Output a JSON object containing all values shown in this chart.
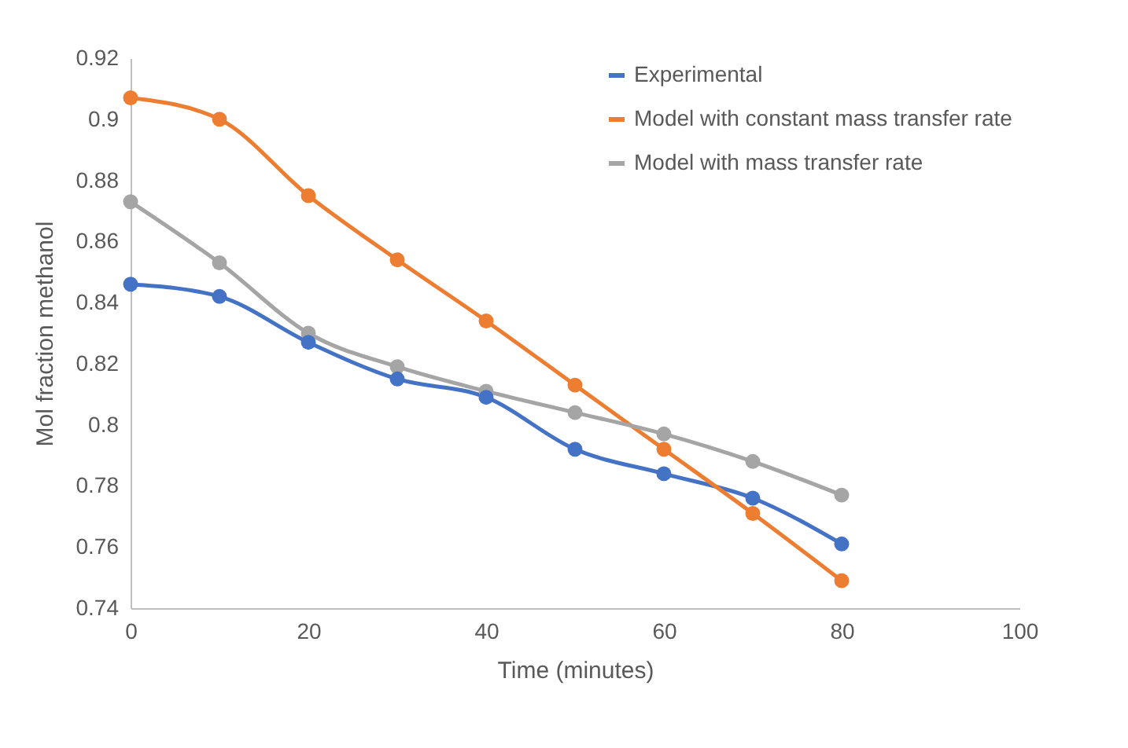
{
  "chart_data": {
    "type": "line",
    "xlabel": "Time (minutes)",
    "ylabel": "Mol fraction methanol",
    "x": [
      0,
      10,
      20,
      30,
      40,
      50,
      60,
      70,
      80
    ],
    "series": [
      {
        "name": "Experimental",
        "color": "#4472c4",
        "values": [
          0.846,
          0.842,
          0.827,
          0.815,
          0.809,
          0.792,
          0.784,
          0.776,
          0.761
        ]
      },
      {
        "name": "Model with constant mass transfer rate",
        "color": "#ed7d31",
        "values": [
          0.907,
          0.9,
          0.875,
          0.854,
          0.834,
          0.813,
          0.792,
          0.771,
          0.749
        ]
      },
      {
        "name": "Model with mass transfer rate",
        "color": "#a5a5a5",
        "values": [
          0.873,
          0.853,
          0.83,
          0.819,
          0.811,
          0.804,
          0.797,
          0.788,
          0.777
        ]
      }
    ],
    "xlim": [
      0,
      100
    ],
    "xticks": [
      0,
      20,
      40,
      60,
      80,
      100
    ],
    "ylim": [
      0.74,
      0.92
    ],
    "yticks": [
      0.74,
      0.76,
      0.78,
      0.8,
      0.82,
      0.84,
      0.86,
      0.88,
      0.9,
      0.92
    ],
    "grid": false,
    "legend": "top right",
    "marker": "circle",
    "line_style": "solid"
  }
}
